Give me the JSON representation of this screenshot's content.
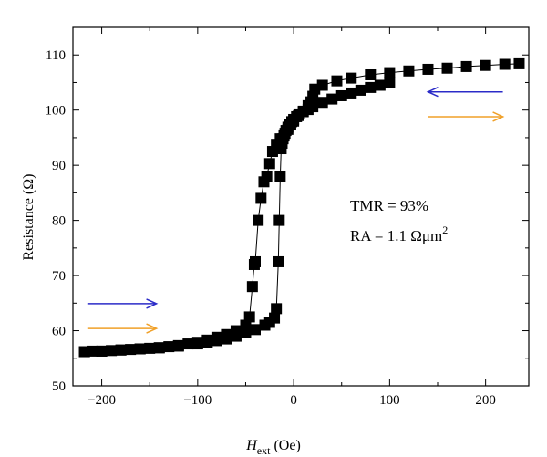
{
  "chart_data": {
    "type": "scatter",
    "xlabel_main": "H",
    "xlabel_sub": "ext",
    "xlabel_unit": "(Oe)",
    "ylabel": "Resistance (Ω)",
    "xlim": [
      -230,
      245
    ],
    "ylim": [
      50,
      115
    ],
    "xticks": [
      -200,
      -100,
      0,
      100,
      200
    ],
    "yticks": [
      50,
      60,
      70,
      80,
      90,
      100,
      110
    ],
    "grid": false,
    "annotations": {
      "tmr": "TMR = 93%",
      "ra_main": "RA = 1.1 Ωμm",
      "ra_sup": "2"
    },
    "arrows": [
      {
        "direction": "left",
        "color": "#2b2bc8",
        "x_from": 218,
        "x_to": 140,
        "y": 103.3
      },
      {
        "direction": "right",
        "color": "#f0a028",
        "x_from": 140,
        "x_to": 218,
        "y": 98.8
      },
      {
        "direction": "right",
        "color": "#2b2bc8",
        "x_from": -215,
        "x_to": -143,
        "y": 64.9
      },
      {
        "direction": "right",
        "color": "#f0a028",
        "x_from": -215,
        "x_to": -143,
        "y": 60.4
      }
    ],
    "series": [
      {
        "sweep": "descending",
        "color": "#000000",
        "x": [
          235,
          220,
          200,
          180,
          160,
          140,
          120,
          100,
          80,
          60,
          45,
          30,
          22,
          20,
          18,
          15,
          10,
          5,
          0,
          -3,
          -6,
          -10,
          -14,
          -18,
          -22,
          -25,
          -28,
          -31,
          -34,
          -37,
          -40,
          -41,
          -43,
          -46,
          -50,
          -60,
          -70,
          -80,
          -90,
          -100,
          -110,
          -120,
          -130,
          -140,
          -150,
          -160,
          -170,
          -180,
          -190,
          -200,
          -210,
          -218
        ],
        "y": [
          108.4,
          108.3,
          108.1,
          107.9,
          107.6,
          107.4,
          107.1,
          106.8,
          106.4,
          105.8,
          105.3,
          104.5,
          103.8,
          102.5,
          101.5,
          100.8,
          99.8,
          99.0,
          98.0,
          97.3,
          96.5,
          95.5,
          94.8,
          93.8,
          92.5,
          90.3,
          88.0,
          87.0,
          84.0,
          80.0,
          72.5,
          72.0,
          68.0,
          62.5,
          61.0,
          60.0,
          59.3,
          58.8,
          58.3,
          57.9,
          57.6,
          57.3,
          57.1,
          56.9,
          56.8,
          56.7,
          56.6,
          56.5,
          56.4,
          56.3,
          56.3,
          56.2
        ]
      },
      {
        "sweep": "ascending",
        "color": "#000000",
        "x": [
          -218,
          -200,
          -180,
          -160,
          -140,
          -120,
          -100,
          -90,
          -80,
          -70,
          -60,
          -50,
          -40,
          -30,
          -25,
          -20,
          -18,
          -16,
          -15,
          -14,
          -13,
          -12,
          -11,
          -10,
          -9,
          -8,
          -6,
          -4,
          -2,
          0,
          3,
          6,
          10,
          15,
          20,
          30,
          40,
          50,
          60,
          70,
          80,
          90,
          100
        ],
        "y": [
          56.2,
          56.3,
          56.5,
          56.7,
          56.9,
          57.2,
          57.6,
          57.9,
          58.2,
          58.5,
          59.0,
          59.6,
          60.2,
          61.0,
          61.5,
          62.3,
          64.0,
          72.5,
          80.0,
          88.0,
          93.0,
          94.0,
          94.8,
          95.3,
          95.8,
          96.3,
          96.9,
          97.4,
          97.9,
          98.3,
          98.8,
          99.3,
          99.7,
          100.1,
          100.6,
          101.4,
          102.0,
          102.6,
          103.1,
          103.6,
          104.1,
          104.5,
          105.0
        ]
      }
    ]
  }
}
